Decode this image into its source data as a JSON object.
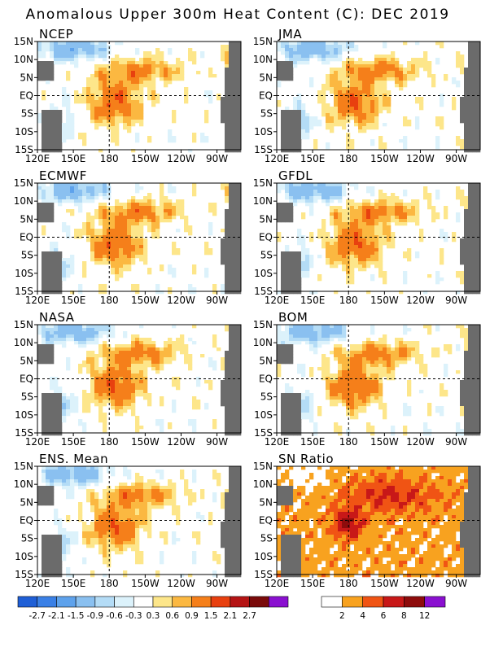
{
  "title": "Anomalous Upper 300m Heat Content (C): DEC 2019",
  "chart_data": {
    "type": "heatmap",
    "title": "Anomalous Upper 300m Heat Content (C): DEC 2019",
    "grid": false,
    "lon_ticks": [
      "120E",
      "150E",
      "180",
      "150W",
      "120W",
      "90W"
    ],
    "lat_ticks": [
      "15N",
      "10N",
      "5N",
      "EQ",
      "5S",
      "10S",
      "15S"
    ],
    "lon_range": [
      120,
      290
    ],
    "lat_range": [
      -15,
      15
    ],
    "reference_lines": {
      "equator_lat": 0,
      "dateline_lon": 180
    },
    "panels": [
      {
        "name": "NCEP",
        "type": "anomaly"
      },
      {
        "name": "JMA",
        "type": "anomaly"
      },
      {
        "name": "ECMWF",
        "type": "anomaly"
      },
      {
        "name": "GFDL",
        "type": "anomaly"
      },
      {
        "name": "NASA",
        "type": "anomaly"
      },
      {
        "name": "BOM",
        "type": "anomaly"
      },
      {
        "name": "ENS. Mean",
        "type": "anomaly"
      },
      {
        "name": "SN Ratio",
        "type": "ratio"
      }
    ],
    "anomaly_colorbar": {
      "labels": [
        "-2.7",
        "-2.1",
        "-1.5",
        "-0.9",
        "-0.6",
        "-0.3",
        "0.3",
        "0.6",
        "0.9",
        "1.5",
        "2.1",
        "2.7"
      ],
      "colors": [
        "#1f5fd6",
        "#3a80e6",
        "#5ea2ec",
        "#8ac0f0",
        "#b4dcf6",
        "#dcf2fb",
        "#ffffff",
        "#fde68a",
        "#fbb841",
        "#f57f1a",
        "#e8400f",
        "#b51414",
        "#7a0a0a",
        "#8a10d0"
      ]
    },
    "ratio_colorbar": {
      "labels": [
        "2",
        "4",
        "6",
        "8",
        "12"
      ],
      "colors": [
        "#ffffff",
        "#f8a21f",
        "#f05414",
        "#c81818",
        "#8e0c0c",
        "#8a10d0"
      ]
    }
  }
}
